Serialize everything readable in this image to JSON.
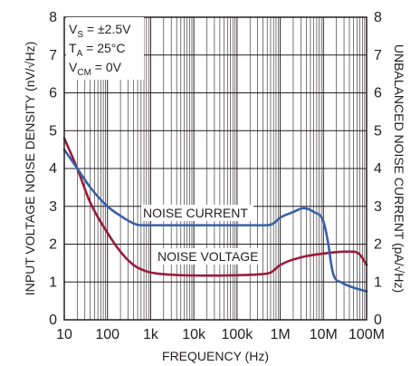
{
  "chart_data": {
    "type": "line",
    "x_scale": "log",
    "xlim": [
      10,
      100000000
    ],
    "ylim_left": [
      0,
      8
    ],
    "ylim_right": [
      0,
      8
    ],
    "grid": true,
    "xlabel": "FREQUENCY (Hz)",
    "ylabel_left": "INPUT VOLTAGE NOISE DENSITY (nV/√Hz)",
    "ylabel_right": "UNBALANCED NOISE CURRENT (pA/√Hz)",
    "x_ticks": [
      "10",
      "100",
      "1k",
      "10k",
      "100k",
      "1M",
      "10M",
      "100M"
    ],
    "y_ticks_left": [
      "0",
      "1",
      "2",
      "3",
      "4",
      "5",
      "6",
      "7",
      "8"
    ],
    "y_ticks_right": [
      "0",
      "1",
      "2",
      "3",
      "4",
      "5",
      "6",
      "7",
      "8"
    ],
    "conditions": [
      {
        "main": "V",
        "sub": "S",
        "rest": " = ±2.5V"
      },
      {
        "main": "T",
        "sub": "A",
        "rest": " = 25°C"
      },
      {
        "main": "V",
        "sub": "CM",
        "rest": " = 0V"
      }
    ],
    "series": [
      {
        "name": "NOISE VOLTAGE",
        "color": "#9b1b3a",
        "axis": "left",
        "x": [
          10,
          20,
          40,
          100,
          200,
          400,
          800,
          1500,
          5000,
          20000,
          100000,
          300000,
          600000,
          1000000,
          3000000,
          10000000,
          30000000,
          50000000,
          70000000,
          100000000
        ],
        "y": [
          4.8,
          4.0,
          3.1,
          2.3,
          1.8,
          1.45,
          1.28,
          1.22,
          1.18,
          1.17,
          1.18,
          1.2,
          1.25,
          1.45,
          1.65,
          1.75,
          1.8,
          1.8,
          1.72,
          1.45
        ]
      },
      {
        "name": "NOISE CURRENT",
        "color": "#3a5fa8",
        "axis": "right",
        "x": [
          10,
          20,
          40,
          100,
          200,
          400,
          600,
          800,
          1000,
          10000,
          100000,
          300000,
          500000,
          700000,
          1000000,
          2000000,
          3500000,
          6000000,
          10000000,
          13000000,
          15000000,
          17000000,
          20000000,
          25000000,
          30000000,
          50000000,
          100000000
        ],
        "y": [
          4.5,
          4.0,
          3.5,
          3.0,
          2.75,
          2.55,
          2.5,
          2.5,
          2.5,
          2.5,
          2.5,
          2.5,
          2.5,
          2.55,
          2.7,
          2.85,
          2.95,
          2.85,
          2.6,
          2.0,
          1.5,
          1.2,
          1.05,
          1.0,
          0.95,
          0.85,
          0.75
        ]
      }
    ]
  }
}
